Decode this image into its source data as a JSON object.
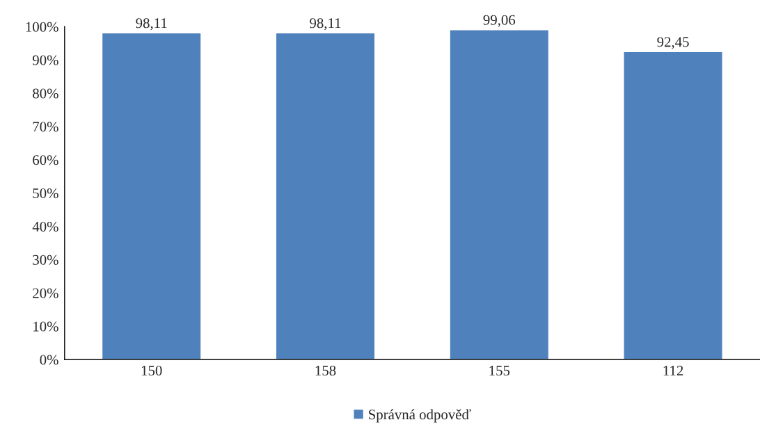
{
  "chart_data": {
    "type": "bar",
    "categories": [
      "150",
      "158",
      "155",
      "112"
    ],
    "series": [
      {
        "name": "Správná odpověď",
        "color": "#4f81bd",
        "values": [
          98.11,
          98.11,
          99.06,
          92.45
        ],
        "value_labels": [
          "98,11",
          "98,11",
          "99,06",
          "92,45"
        ]
      }
    ],
    "ylim": [
      0,
      100
    ],
    "yticks": [
      {
        "value": 0,
        "label": "0%"
      },
      {
        "value": 10,
        "label": "10%"
      },
      {
        "value": 20,
        "label": "20%"
      },
      {
        "value": 30,
        "label": "30%"
      },
      {
        "value": 40,
        "label": "40%"
      },
      {
        "value": 50,
        "label": "50%"
      },
      {
        "value": 60,
        "label": "60%"
      },
      {
        "value": 70,
        "label": "70%"
      },
      {
        "value": 80,
        "label": "80%"
      },
      {
        "value": 90,
        "label": "90%"
      },
      {
        "value": 100,
        "label": "100%"
      }
    ],
    "grid": false,
    "legend": "bottom"
  }
}
